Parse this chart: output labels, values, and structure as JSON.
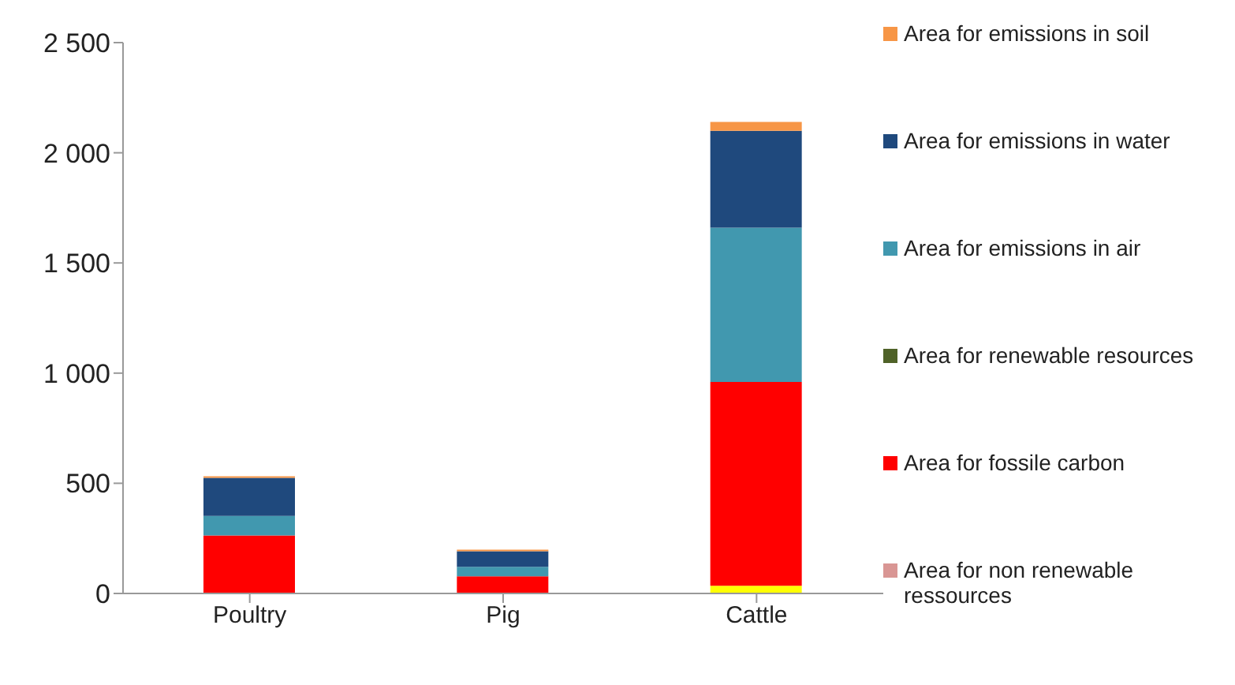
{
  "chart_data": {
    "type": "bar",
    "stacked": true,
    "categories": [
      "Poultry",
      "Pig",
      "Cattle"
    ],
    "series": [
      {
        "color": "#ffff00",
        "values": [
          0,
          0,
          35
        ]
      },
      {
        "name": "Area for non renewable ressources",
        "color": "#d99694",
        "values": [
          0,
          0,
          0
        ]
      },
      {
        "name": "Area for fossile carbon",
        "color": "#ff0000",
        "values": [
          263,
          78,
          925
        ]
      },
      {
        "name": "Area for renewable resources",
        "color": "#4f6228",
        "values": [
          0,
          0,
          0
        ]
      },
      {
        "name": "Area for emissions in air",
        "color": "#4198af",
        "values": [
          89,
          43,
          700
        ]
      },
      {
        "name": "Area for emissions in water",
        "color": "#1f497d",
        "values": [
          173,
          71,
          440
        ]
      },
      {
        "name": "Area for emissions in soil",
        "color": "#f79646",
        "values": [
          7,
          7,
          40
        ]
      }
    ],
    "ylim": [
      0,
      2500
    ],
    "yticks": [
      0,
      {
        "value": 500,
        "label": "500"
      },
      {
        "value": 1000,
        "label": "1 000"
      },
      {
        "value": 1500,
        "label": "1 500"
      },
      {
        "value": 2000,
        "label": "2 000"
      },
      {
        "value": 2500,
        "label": "2 500"
      }
    ],
    "grid": false,
    "legend": "right"
  }
}
